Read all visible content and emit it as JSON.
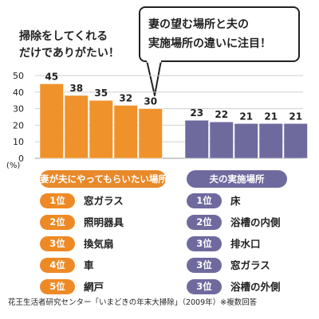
{
  "headline": [
    "掃除をしてくれる",
    "だけでありがたい！"
  ],
  "callout": [
    "妻の望む場所と夫の",
    "実施場所の違いに注目！"
  ],
  "colors": {
    "wife": "#f0922b",
    "husband": "#6f6a9e",
    "wife_badge": "#ee8a26",
    "husband_badge": "#6f6a9e"
  },
  "chart_data": {
    "type": "bar",
    "unit_label": "(%)",
    "ylim": [
      0,
      50
    ],
    "yticks": [
      0,
      10,
      20,
      30,
      40,
      50
    ],
    "grid": true,
    "series": [
      {
        "name": "妻が夫にやってもらいたい場所",
        "values": [
          45,
          38,
          35,
          32,
          30
        ]
      },
      {
        "name": "夫の実施場所",
        "values": [
          23,
          22,
          21,
          21,
          21
        ]
      }
    ]
  },
  "wife_label": "妻が夫にやってもらいたい場所",
  "husband_label": "夫の実施場所",
  "wife_ranking": [
    {
      "rank": "1位",
      "item": "窓ガラス"
    },
    {
      "rank": "2位",
      "item": "照明器具"
    },
    {
      "rank": "3位",
      "item": "換気扇"
    },
    {
      "rank": "4位",
      "item": "車"
    },
    {
      "rank": "5位",
      "item": "網戸"
    }
  ],
  "husband_ranking": [
    {
      "rank": "1位",
      "item": "床"
    },
    {
      "rank": "2位",
      "item": "浴槽の内側"
    },
    {
      "rank": "3位",
      "item": "排水口"
    },
    {
      "rank": "3位",
      "item": "窓ガラス"
    },
    {
      "rank": "3位",
      "item": "浴槽の外側"
    }
  ],
  "footer": "花王生活者研究センター「いまどきの年末大掃除」（2009年）※複数回答"
}
